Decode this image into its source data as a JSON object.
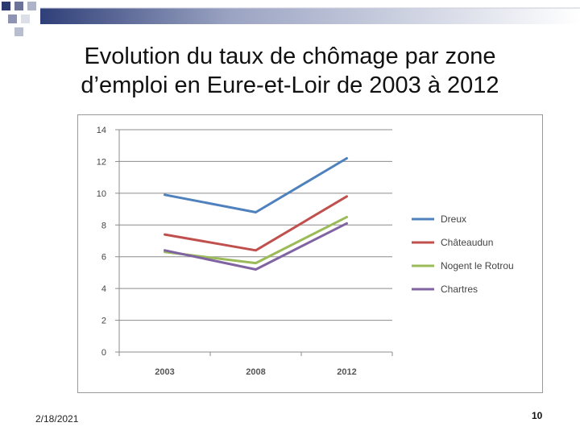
{
  "slide": {
    "title_line1": "Evolution du taux de chômage par zone",
    "title_line2": "d’emploi en Eure-et-Loir de 2003 à 2012",
    "date": "2/18/2021",
    "page_number": "10"
  },
  "chart_data": {
    "type": "line",
    "title": "",
    "xlabel": "",
    "ylabel": "",
    "categories": [
      "2003",
      "2008",
      "2012"
    ],
    "ylim": [
      0,
      14
    ],
    "yticks": [
      0,
      2,
      4,
      6,
      8,
      10,
      12,
      14
    ],
    "grid": true,
    "legend_position": "right",
    "series": [
      {
        "name": "Dreux",
        "color": "#4F81BD",
        "values": [
          9.9,
          8.8,
          12.2
        ]
      },
      {
        "name": "Châteaudun",
        "color": "#C0504D",
        "values": [
          7.4,
          6.4,
          9.8
        ]
      },
      {
        "name": "Nogent le Rotrou",
        "color": "#9BBB59",
        "values": [
          6.3,
          5.6,
          8.5
        ]
      },
      {
        "name": "Chartres",
        "color": "#8064A2",
        "values": [
          6.4,
          5.2,
          8.1
        ]
      }
    ]
  }
}
